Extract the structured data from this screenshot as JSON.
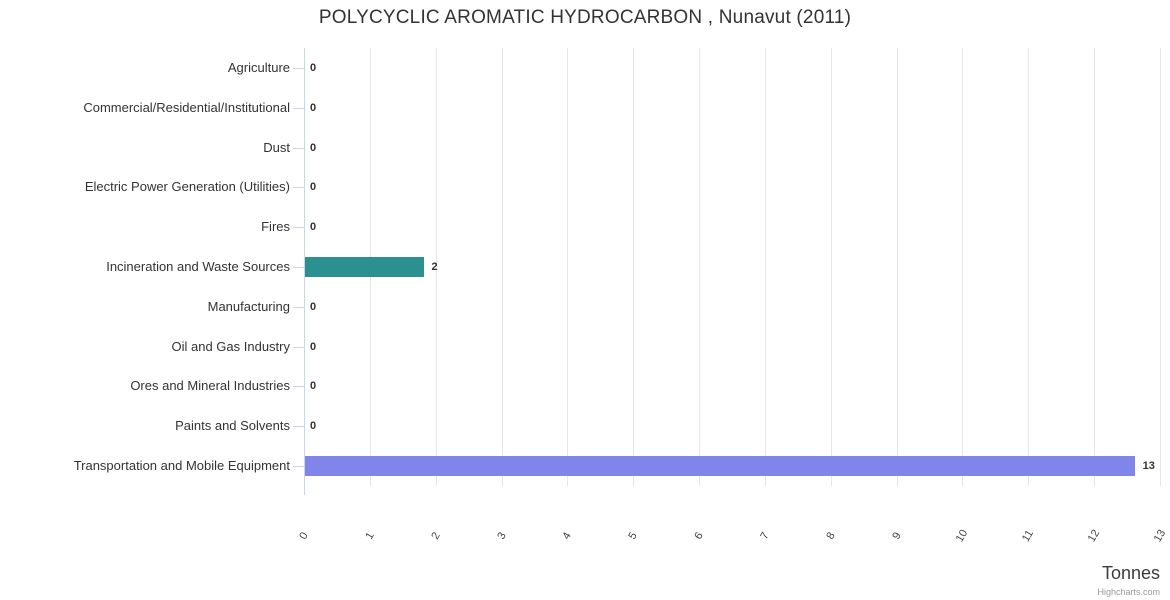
{
  "chart_data": {
    "type": "bar",
    "orientation": "horizontal",
    "title": "POLYCYCLIC AROMATIC HYDROCARBON , Nunavut (2011)",
    "categories": [
      "Agriculture",
      "Commercial/Residential/Institutional",
      "Dust",
      "Electric Power Generation (Utilities)",
      "Fires",
      "Incineration and Waste Sources",
      "Manufacturing",
      "Oil and Gas Industry",
      "Ores and Mineral Industries",
      "Paints and Solvents",
      "Transportation and Mobile Equipment"
    ],
    "values": [
      0,
      0,
      0,
      0,
      0,
      2,
      0,
      0,
      0,
      0,
      13
    ],
    "values_precise": [
      0,
      0,
      0,
      0,
      0,
      1.8,
      0,
      0,
      0,
      0,
      12.6
    ],
    "data_labels": [
      "0",
      "0",
      "0",
      "0",
      "0",
      "2",
      "0",
      "0",
      "0",
      "0",
      "13"
    ],
    "bar_colors": [
      "#7cb5ec",
      "#7cb5ec",
      "#7cb5ec",
      "#7cb5ec",
      "#7cb5ec",
      "#2b908f",
      "#7cb5ec",
      "#7cb5ec",
      "#7cb5ec",
      "#7cb5ec",
      "#8085e9"
    ],
    "value_axis": {
      "label": "Tonnes",
      "min": 0,
      "max": 13,
      "tick_interval": 1,
      "tick_labels": [
        "0",
        "1",
        "2",
        "3",
        "4",
        "5",
        "6",
        "7",
        "8",
        "9",
        "10",
        "11",
        "12",
        "13"
      ]
    },
    "grid": true,
    "legend": "none",
    "credit": "Highcharts.com",
    "colors": {
      "grid": "#e6e6e6",
      "axis": "#ccd6eb",
      "title_text": "#333333",
      "category_text": "#333333",
      "tick_text": "#444444",
      "credit_text": "#999999"
    }
  }
}
